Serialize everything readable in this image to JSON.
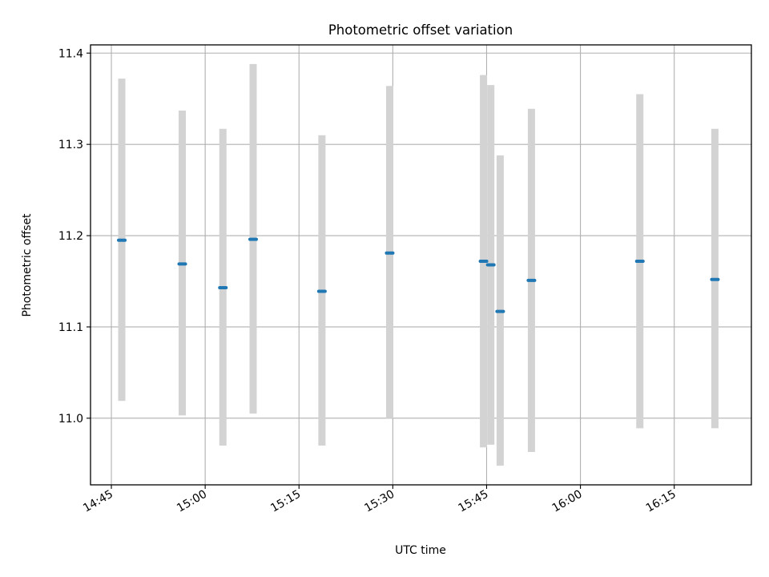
{
  "chart_data": {
    "type": "scatter",
    "title": "Photometric offset variation",
    "xlabel": "UTC time",
    "ylabel": "Photometric offset",
    "x_ticks": [
      "14:45",
      "15:00",
      "15:15",
      "15:30",
      "15:45",
      "16:00",
      "16:15"
    ],
    "y_ticks": [
      "11.0",
      "11.1",
      "11.2",
      "11.3",
      "11.4"
    ],
    "grid": true,
    "xlim": [
      "14:41:40",
      "16:27:20"
    ],
    "ylim": [
      10.927,
      11.409
    ],
    "points": [
      {
        "t": "14:46:40",
        "y": 11.195,
        "ylow": 11.019,
        "yhigh": 11.372
      },
      {
        "t": "14:56:20",
        "y": 11.169,
        "ylow": 11.003,
        "yhigh": 11.337
      },
      {
        "t": "15:02:50",
        "y": 11.143,
        "ylow": 10.97,
        "yhigh": 11.317
      },
      {
        "t": "15:07:40",
        "y": 11.196,
        "ylow": 11.005,
        "yhigh": 11.388
      },
      {
        "t": "15:18:40",
        "y": 11.139,
        "ylow": 10.97,
        "yhigh": 11.31
      },
      {
        "t": "15:29:30",
        "y": 11.181,
        "ylow": 11.0,
        "yhigh": 11.364
      },
      {
        "t": "15:44:30",
        "y": 11.172,
        "ylow": 10.968,
        "yhigh": 11.376
      },
      {
        "t": "15:45:40",
        "y": 11.168,
        "ylow": 10.971,
        "yhigh": 11.365
      },
      {
        "t": "15:47:10",
        "y": 11.117,
        "ylow": 10.948,
        "yhigh": 11.288
      },
      {
        "t": "15:52:10",
        "y": 11.151,
        "ylow": 10.963,
        "yhigh": 11.339
      },
      {
        "t": "16:09:30",
        "y": 11.172,
        "ylow": 10.989,
        "yhigh": 11.355
      },
      {
        "t": "16:21:30",
        "y": 11.152,
        "ylow": 10.989,
        "yhigh": 11.317
      }
    ],
    "marker_color": "#1f77b4",
    "errorbar_color": "#d3d3d3",
    "legend": "none"
  }
}
